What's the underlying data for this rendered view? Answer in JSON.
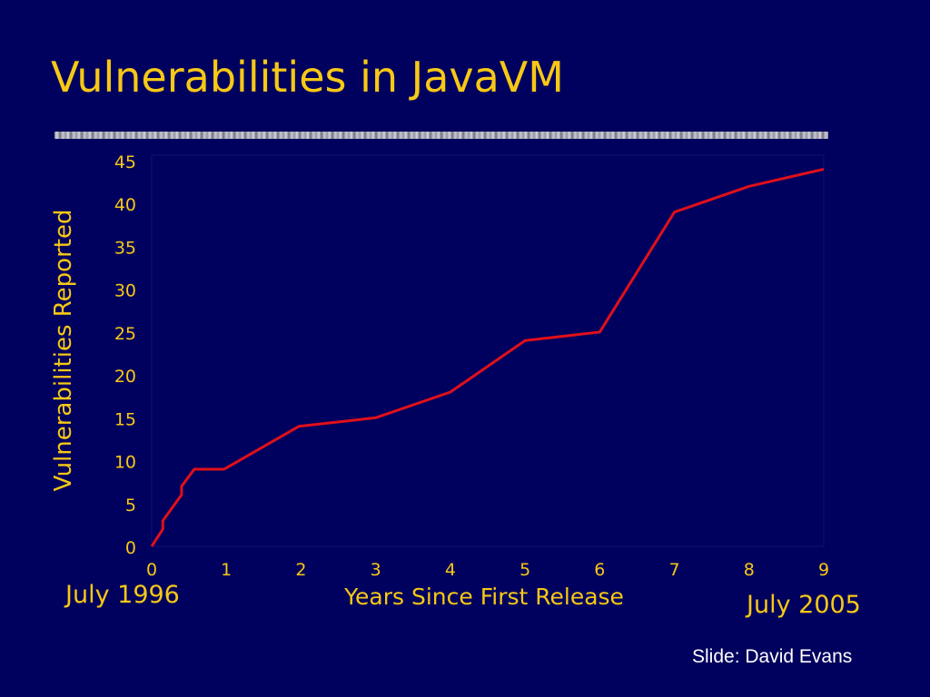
{
  "slide": {
    "title": "Vulnerabilities in JavaVM",
    "start_label": "July 1996",
    "end_label": "July 2005",
    "credit": "Slide: David Evans"
  },
  "colors": {
    "background": "#00005e",
    "title": "#f7c815",
    "axis_text": "#f7c815",
    "line": "#e0101a",
    "credit": "#ffffff"
  },
  "chart_data": {
    "type": "line",
    "title": "",
    "xlabel": "Years Since First Release",
    "ylabel": "Vulnerabilities Reported",
    "xlim": [
      0,
      9
    ],
    "ylim": [
      0,
      45
    ],
    "xticks": [
      0,
      1,
      2,
      3,
      4,
      5,
      6,
      7,
      8,
      9
    ],
    "yticks": [
      0,
      5,
      10,
      15,
      20,
      25,
      30,
      35,
      40,
      45
    ],
    "grid": false,
    "legend": "none",
    "series": [
      {
        "x": [
          0,
          0.15,
          0.15,
          0.4,
          0.4,
          0.57,
          0.97,
          1.97,
          3.0,
          4.0,
          5.0,
          6.0,
          7.0,
          8.0,
          9.0
        ],
        "y": [
          0,
          2,
          3,
          6,
          7,
          9,
          9,
          14,
          15,
          18,
          24,
          25,
          39,
          42,
          44
        ]
      }
    ]
  }
}
